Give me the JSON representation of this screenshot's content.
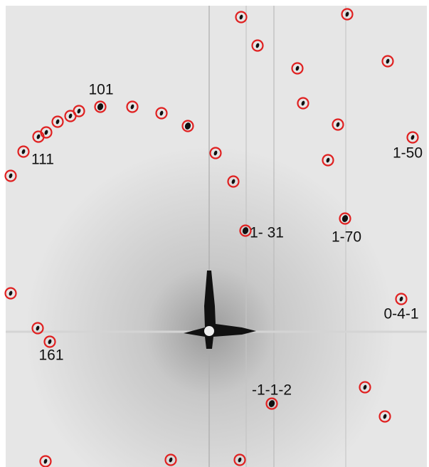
{
  "labels": [
    "101",
    "111",
    "1-50",
    "1- 31",
    "1-70",
    "0-4-1",
    "161",
    "-1-1-2"
  ]
}
